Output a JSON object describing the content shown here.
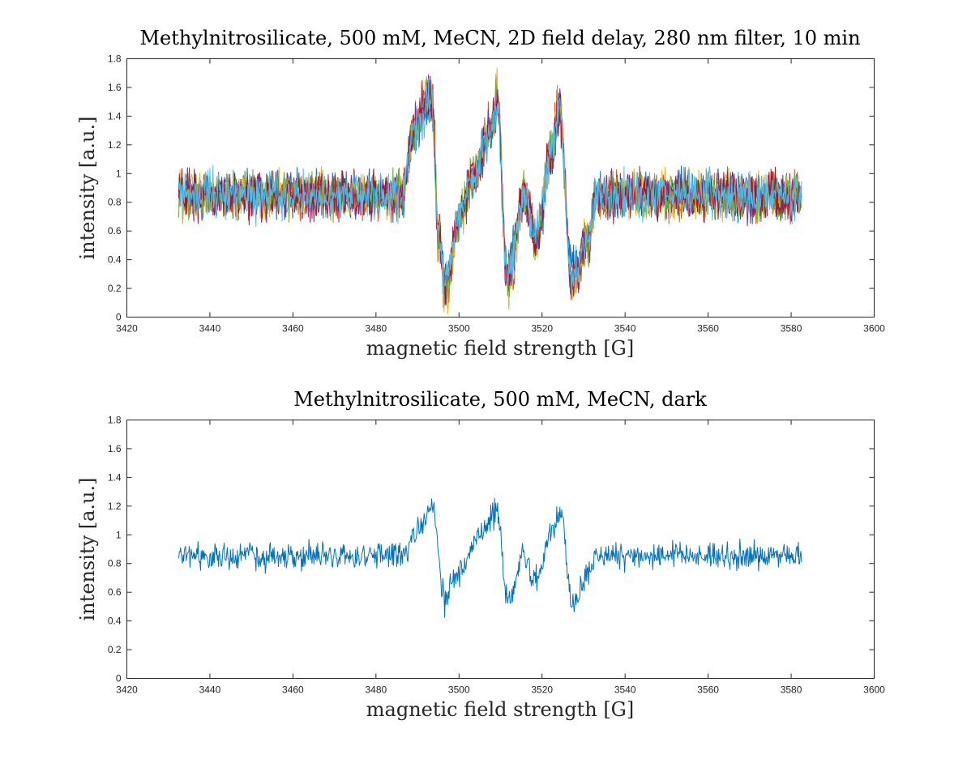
{
  "chart_data": [
    {
      "type": "line",
      "title": "Methylnitrosilicate, 500 mM, MeCN, 2D field delay, 280 nm filter, 10 min",
      "xlabel": "magnetic field strength [G]",
      "ylabel": "intensity [a.u.]",
      "xlim": [
        3420,
        3600
      ],
      "ylim": [
        0,
        1.8
      ],
      "x_ticks": [
        3420,
        3440,
        3460,
        3480,
        3500,
        3520,
        3540,
        3560,
        3580,
        3600
      ],
      "x_tick_labels": [
        "3420",
        "3440",
        "3460",
        "3480",
        "3500",
        "3520",
        "3540",
        "3560",
        "3580",
        "3600"
      ],
      "y_ticks": [
        0,
        0.2,
        0.4,
        0.6,
        0.8,
        1,
        1.2,
        1.4,
        1.6,
        1.8
      ],
      "y_tick_labels": [
        "0",
        "0.2",
        "0.4",
        "0.6",
        "0.8",
        "1",
        "1.2",
        "1.4",
        "1.6",
        "1.8"
      ],
      "grid": false,
      "legend": "none",
      "x_range_data": [
        3432.5,
        3582.5
      ],
      "baseline": 0.85,
      "noise_amplitude": 0.12,
      "series_count": 7,
      "series_colors": [
        "#0072BD",
        "#D95319",
        "#EDB120",
        "#7E2F8E",
        "#77AC30",
        "#A2142F",
        "#4DBEEE"
      ],
      "spectral_features": [
        {
          "x": 3489.0,
          "y": 1.3
        },
        {
          "x": 3493.2,
          "y": 1.55
        },
        {
          "x": 3495.0,
          "y": 0.55
        },
        {
          "x": 3496.5,
          "y": 0.2
        },
        {
          "x": 3500.0,
          "y": 0.7
        },
        {
          "x": 3503.0,
          "y": 0.95
        },
        {
          "x": 3507.5,
          "y": 1.3
        },
        {
          "x": 3509.0,
          "y": 1.52
        },
        {
          "x": 3511.5,
          "y": 0.25
        },
        {
          "x": 3515.5,
          "y": 0.85
        },
        {
          "x": 3518.5,
          "y": 0.55
        },
        {
          "x": 3522.0,
          "y": 1.15
        },
        {
          "x": 3524.0,
          "y": 1.45
        },
        {
          "x": 3527.0,
          "y": 0.25
        },
        {
          "x": 3531.0,
          "y": 0.55
        }
      ]
    },
    {
      "type": "line",
      "title": "Methylnitrosilicate, 500 mM, MeCN, dark",
      "xlabel": "magnetic field strength [G]",
      "ylabel": "intensity [a.u.]",
      "xlim": [
        3420,
        3600
      ],
      "ylim": [
        0,
        1.8
      ],
      "x_ticks": [
        3420,
        3440,
        3460,
        3480,
        3500,
        3520,
        3540,
        3560,
        3580,
        3600
      ],
      "x_tick_labels": [
        "3420",
        "3440",
        "3460",
        "3480",
        "3500",
        "3520",
        "3540",
        "3560",
        "3580",
        "3600"
      ],
      "y_ticks": [
        0,
        0.2,
        0.4,
        0.6,
        0.8,
        1,
        1.2,
        1.4,
        1.6,
        1.8
      ],
      "y_tick_labels": [
        "0",
        "0.2",
        "0.4",
        "0.6",
        "0.8",
        "1",
        "1.2",
        "1.4",
        "1.6",
        "1.8"
      ],
      "grid": false,
      "legend": "none",
      "x_range_data": [
        3432.5,
        3582.5
      ],
      "baseline": 0.85,
      "noise_amplitude": 0.07,
      "series_count": 1,
      "series_colors": [
        "#0072BD"
      ],
      "spectral_features": [
        {
          "x": 3489.5,
          "y": 1.0
        },
        {
          "x": 3493.5,
          "y": 1.18
        },
        {
          "x": 3496.5,
          "y": 0.55
        },
        {
          "x": 3500.0,
          "y": 0.75
        },
        {
          "x": 3505.0,
          "y": 1.0
        },
        {
          "x": 3509.0,
          "y": 1.15
        },
        {
          "x": 3511.8,
          "y": 0.52
        },
        {
          "x": 3515.5,
          "y": 0.85
        },
        {
          "x": 3518.5,
          "y": 0.68
        },
        {
          "x": 3522.5,
          "y": 1.05
        },
        {
          "x": 3524.5,
          "y": 1.15
        },
        {
          "x": 3527.2,
          "y": 0.52
        },
        {
          "x": 3531.0,
          "y": 0.72
        }
      ]
    }
  ]
}
